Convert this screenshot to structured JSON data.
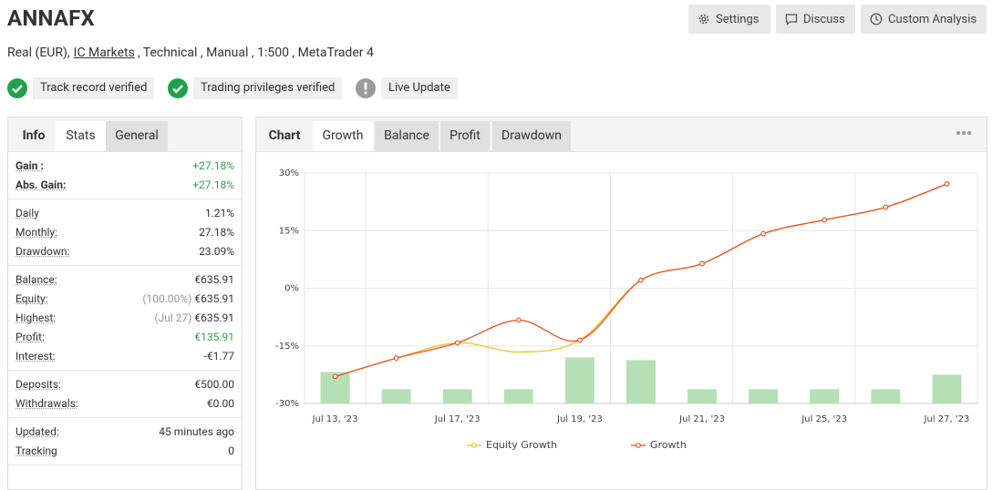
{
  "header": {
    "title": "ANNAFX",
    "buttons": [
      "Settings",
      "Discuss",
      "Custom Analysis"
    ],
    "subtitle": {
      "prefix": "Real (EUR),",
      "link": "IC Markets",
      "suffix": ", Technical , Manual , 1:500 , MetaTrader 4"
    },
    "badges": [
      "Track record verified",
      "Trading privileges verified",
      "Live Update"
    ]
  },
  "stats_panel": {
    "tabs": [
      "Info",
      "Stats",
      "General"
    ],
    "groups": [
      [
        {
          "label": "Gain :",
          "value": "+27.18%",
          "color": "#2ea24a"
        },
        {
          "label": "Abs. Gain:",
          "value": "+27.18%",
          "color": "#2ea24a"
        }
      ],
      [
        {
          "label": "Daily",
          "value": "1.21%"
        },
        {
          "label": "Monthly:",
          "value": "27.18%"
        },
        {
          "label": "Drawdown:",
          "value": "23.09%"
        }
      ],
      [
        {
          "label": "Balance:",
          "value": "€635.91"
        },
        {
          "label": "Equity:",
          "note": "(100.00%)",
          "value": "€635.91"
        },
        {
          "label": "Highest:",
          "note": "(Jul 27)",
          "value": "€635.91"
        },
        {
          "label": "Profit:",
          "value": "€135.91",
          "color": "#2ea24a"
        },
        {
          "label": "Interest:",
          "value": "-€1.77"
        }
      ],
      [
        {
          "label": "Deposits:",
          "value": "€500.00"
        },
        {
          "label": "Withdrawals:",
          "value": "€0.00"
        }
      ],
      [
        {
          "label": "Updated:",
          "value": "45 minutes ago"
        },
        {
          "label": "Tracking",
          "value": "0"
        }
      ]
    ]
  },
  "chart_panel": {
    "tabs": [
      "Chart",
      "Growth",
      "Balance",
      "Profit",
      "Drawdown"
    ]
  },
  "chart_data": {
    "type": "line",
    "categories": [
      "Jul 13, '23",
      null,
      "Jul 17, '23",
      null,
      "Jul 19, '23",
      null,
      "Jul 21, '23",
      null,
      "Jul 25, '23",
      null,
      "Jul 27, '23"
    ],
    "series": [
      {
        "name": "Equity Growth",
        "color": "#f2c21a",
        "values": [
          -23.0,
          -18.2,
          -14.2,
          -16.6,
          -13.5,
          2.1,
          6.4,
          14.2,
          17.8,
          21.1,
          27.18
        ]
      },
      {
        "name": "Growth",
        "color": "#e5532a",
        "values": [
          -23.0,
          -18.2,
          -14.2,
          -8.3,
          -13.5,
          2.1,
          6.4,
          14.2,
          17.8,
          21.1,
          27.18
        ]
      }
    ],
    "bars": {
      "color": "#b5e0b5",
      "values": [
        -21.8,
        -26.3,
        -26.3,
        -26.3,
        -18.0,
        -18.7,
        -26.3,
        -26.3,
        -26.3,
        -26.3,
        -22.5
      ]
    },
    "ylim": [
      -30,
      30
    ],
    "yticks": [
      {
        "value": 30,
        "label": "30%"
      },
      {
        "value": 15,
        "label": "15%"
      },
      {
        "value": 0,
        "label": "0%"
      },
      {
        "value": -15,
        "label": "-15%"
      },
      {
        "value": -30,
        "label": "-30%"
      }
    ],
    "grid": true
  }
}
